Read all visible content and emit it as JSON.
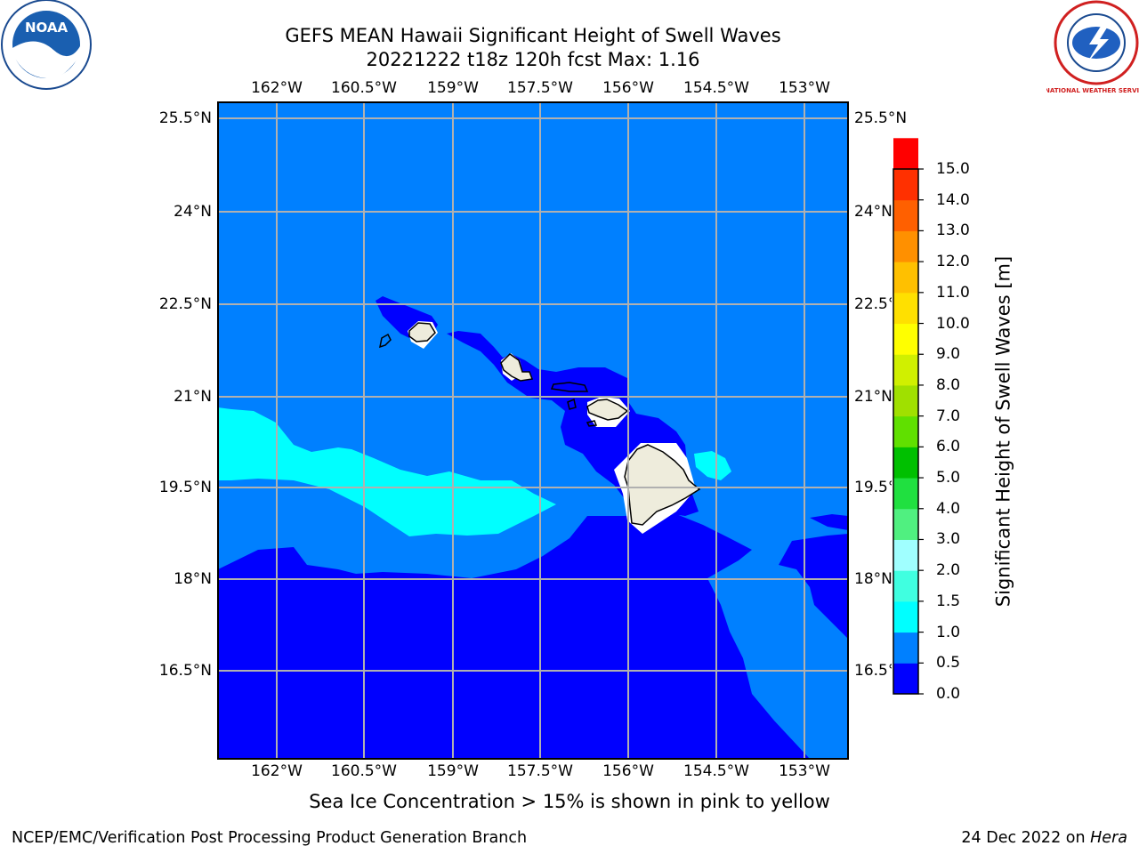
{
  "title": {
    "line1": "GEFS MEAN Hawaii Significant Height of Swell Waves",
    "line2": "20221222 t18z 120h fcst   Max: 1.16"
  },
  "axes": {
    "lon_ticks": [
      "162°W",
      "160.5°W",
      "159°W",
      "157.5°W",
      "156°W",
      "154.5°W",
      "153°W"
    ],
    "lat_ticks": [
      "25.5°N",
      "24°N",
      "22.5°N",
      "21°N",
      "19.5°N",
      "18°N",
      "16.5°N"
    ]
  },
  "colorbar": {
    "label": "Significant Height of Swell Waves [m]",
    "ticks": [
      "0.0",
      "0.5",
      "1.0",
      "1.5",
      "2.0",
      "3.0",
      "4.0",
      "5.0",
      "6.0",
      "7.0",
      "8.0",
      "9.0",
      "10.0",
      "11.0",
      "12.0",
      "13.0",
      "14.0",
      "15.0"
    ],
    "colors": [
      "#0000ff",
      "#0080ff",
      "#00ffff",
      "#40ffe0",
      "#a0ffff",
      "#50f080",
      "#20e040",
      "#00c000",
      "#60e000",
      "#a0e000",
      "#d0f000",
      "#ffff00",
      "#ffe000",
      "#ffc000",
      "#ff9000",
      "#ff6000",
      "#ff3000",
      "#ff0000"
    ]
  },
  "map_colors": {
    "band_0_0_5": "#0000ff",
    "band_0_5_1_0": "#0080ff",
    "band_1_0_1_5": "#00ffff",
    "land": "#eeecdc",
    "grid": "#b0b0b0"
  },
  "logos": {
    "left": "NOAA",
    "right": "NATIONAL WEATHER SERVICE"
  },
  "footer": {
    "note": "Sea Ice Concentration > 15% is shown in pink to yellow",
    "credit_left": "NCEP/EMC/Verification Post Processing Product Generation Branch",
    "credit_date": "24 Dec 2022 on",
    "credit_host": "Hera"
  }
}
